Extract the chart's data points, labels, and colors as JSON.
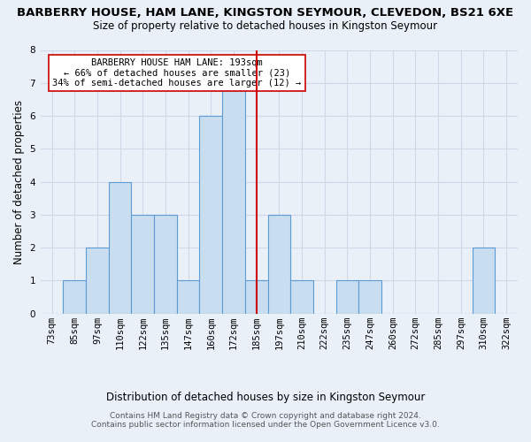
{
  "title": "BARBERRY HOUSE, HAM LANE, KINGSTON SEYMOUR, CLEVEDON, BS21 6XE",
  "subtitle": "Size of property relative to detached houses in Kingston Seymour",
  "xlabel": "Distribution of detached houses by size in Kingston Seymour",
  "ylabel": "Number of detached properties",
  "footer_line1": "Contains HM Land Registry data © Crown copyright and database right 2024.",
  "footer_line2": "Contains public sector information licensed under the Open Government Licence v3.0.",
  "categories": [
    "73sqm",
    "85sqm",
    "97sqm",
    "110sqm",
    "122sqm",
    "135sqm",
    "147sqm",
    "160sqm",
    "172sqm",
    "185sqm",
    "197sqm",
    "210sqm",
    "222sqm",
    "235sqm",
    "247sqm",
    "260sqm",
    "272sqm",
    "285sqm",
    "297sqm",
    "310sqm",
    "322sqm"
  ],
  "values": [
    0,
    1,
    2,
    4,
    3,
    3,
    1,
    6,
    7,
    1,
    3,
    1,
    0,
    1,
    1,
    0,
    0,
    0,
    0,
    2,
    0
  ],
  "bar_color": "#c9ddf0",
  "bar_edge_color": "#5b9bd5",
  "grid_color": "#d0d8e8",
  "background_color": "#eaf0f8",
  "vline_x": 9.0,
  "vline_color": "#cc0000",
  "annotation_text": "BARBERRY HOUSE HAM LANE: 193sqm\n← 66% of detached houses are smaller (23)\n34% of semi-detached houses are larger (12) →",
  "annotation_box_color": "white",
  "annotation_box_edge": "#cc0000",
  "ylim": [
    0,
    8
  ],
  "yticks": [
    0,
    1,
    2,
    3,
    4,
    5,
    6,
    7,
    8
  ],
  "title_fontsize": 9.5,
  "subtitle_fontsize": 8.5,
  "ylabel_fontsize": 8.5,
  "xlabel_fontsize": 8.5,
  "tick_fontsize": 7.5,
  "annot_fontsize": 7.5,
  "footer_fontsize": 6.5
}
